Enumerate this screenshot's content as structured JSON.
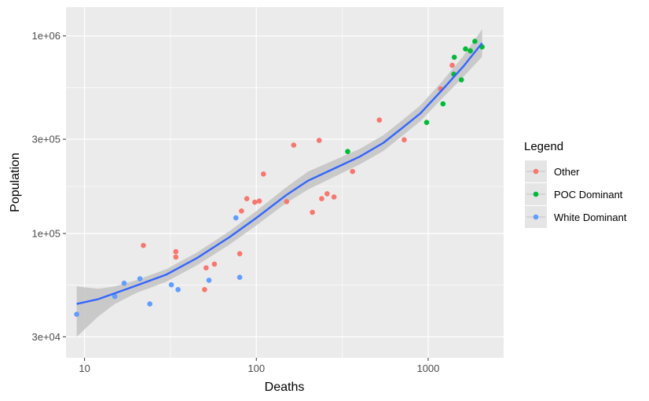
{
  "chart_data": {
    "type": "scatter",
    "xlabel": "Deaths",
    "ylabel": "Population",
    "x_scale": "log10",
    "y_scale": "log10",
    "xlim": [
      7.8,
      2750
    ],
    "ylim": [
      23500,
      1400000
    ],
    "x_ticks": [
      {
        "value": 10,
        "label": "10"
      },
      {
        "value": 100,
        "label": "100"
      },
      {
        "value": 1000,
        "label": "1000"
      }
    ],
    "y_ticks": [
      {
        "value": 30000,
        "label": "3e+04"
      },
      {
        "value": 100000,
        "label": "1e+05"
      },
      {
        "value": 300000,
        "label": "3e+05"
      },
      {
        "value": 1000000,
        "label": "1e+06"
      }
    ],
    "grid": true,
    "panel_background": "#ebebeb",
    "legend": {
      "title": "Legend",
      "position": "right",
      "entries": [
        "Other",
        "POC Dominant",
        "White Dominant"
      ]
    },
    "colors": {
      "Other": "#F8766D",
      "POC Dominant": "#00BA38",
      "White Dominant": "#619CFF",
      "trend_line": "#3366FF",
      "confidence_band": "#c3c3c3"
    },
    "series": [
      {
        "name": "Other",
        "points": [
          [
            22,
            87000
          ],
          [
            34,
            81000
          ],
          [
            34,
            76000
          ],
          [
            50,
            52000
          ],
          [
            51,
            67000
          ],
          [
            57,
            70000
          ],
          [
            80,
            79000
          ],
          [
            82,
            130000
          ],
          [
            88,
            150000
          ],
          [
            98,
            144000
          ],
          [
            104,
            146000
          ],
          [
            110,
            200000
          ],
          [
            150,
            145000
          ],
          [
            165,
            280000
          ],
          [
            212,
            128000
          ],
          [
            232,
            296000
          ],
          [
            240,
            150000
          ],
          [
            258,
            159000
          ],
          [
            283,
            153000
          ],
          [
            363,
            206000
          ],
          [
            520,
            375000
          ],
          [
            725,
            298000
          ],
          [
            1180,
            540000
          ],
          [
            1380,
            710000
          ]
        ]
      },
      {
        "name": "POC Dominant",
        "points": [
          [
            340,
            260000
          ],
          [
            980,
            365000
          ],
          [
            1220,
            453000
          ],
          [
            1410,
            640000
          ],
          [
            1420,
            780000
          ],
          [
            1560,
            600000
          ],
          [
            1650,
            860000
          ],
          [
            1760,
            840000
          ],
          [
            1870,
            940000
          ],
          [
            2060,
            880000
          ]
        ]
      },
      {
        "name": "White Dominant",
        "points": [
          [
            9,
            39000
          ],
          [
            15,
            48000
          ],
          [
            17,
            56000
          ],
          [
            21,
            59000
          ],
          [
            24,
            44000
          ],
          [
            32,
            55000
          ],
          [
            35,
            52000
          ],
          [
            53,
            58000
          ],
          [
            76,
            120000
          ],
          [
            80,
            60000
          ]
        ]
      }
    ],
    "trend": {
      "method": "loess",
      "line": [
        [
          9,
          44000
        ],
        [
          12,
          46500
        ],
        [
          15,
          49800
        ],
        [
          20,
          54500
        ],
        [
          30,
          62000
        ],
        [
          45,
          75000
        ],
        [
          70,
          96000
        ],
        [
          100,
          120000
        ],
        [
          150,
          157000
        ],
        [
          200,
          185000
        ],
        [
          300,
          218000
        ],
        [
          400,
          245000
        ],
        [
          550,
          288000
        ],
        [
          700,
          340000
        ],
        [
          900,
          405000
        ],
        [
          1200,
          530000
        ],
        [
          1600,
          700000
        ],
        [
          2060,
          920000
        ]
      ],
      "upper": [
        [
          9,
          54000
        ],
        [
          12,
          52500
        ],
        [
          15,
          54000
        ],
        [
          20,
          58000
        ],
        [
          30,
          66000
        ],
        [
          45,
          80000
        ],
        [
          70,
          103000
        ],
        [
          100,
          130000
        ],
        [
          150,
          172000
        ],
        [
          200,
          206000
        ],
        [
          300,
          240000
        ],
        [
          400,
          268000
        ],
        [
          550,
          315000
        ],
        [
          700,
          372000
        ],
        [
          900,
          445000
        ],
        [
          1200,
          585000
        ],
        [
          1600,
          790000
        ],
        [
          2060,
          1080000
        ]
      ],
      "lower": [
        [
          9,
          30000
        ],
        [
          12,
          38000
        ],
        [
          15,
          44000
        ],
        [
          20,
          50000
        ],
        [
          30,
          57000
        ],
        [
          45,
          69000
        ],
        [
          70,
          88000
        ],
        [
          100,
          110000
        ],
        [
          150,
          143000
        ],
        [
          200,
          167000
        ],
        [
          300,
          198000
        ],
        [
          400,
          224000
        ],
        [
          550,
          262000
        ],
        [
          700,
          310000
        ],
        [
          900,
          370000
        ],
        [
          1200,
          480000
        ],
        [
          1600,
          620000
        ],
        [
          2060,
          785000
        ]
      ]
    }
  }
}
